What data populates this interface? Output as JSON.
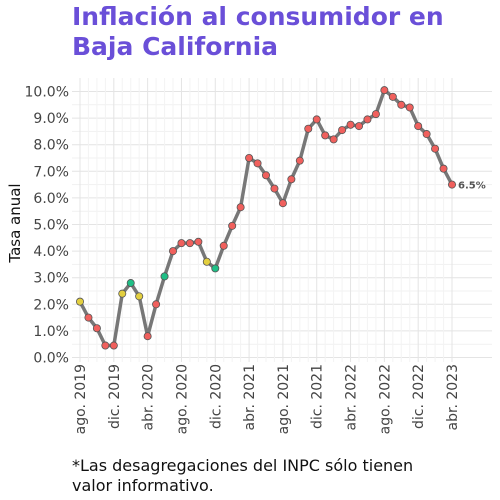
{
  "title_lines": [
    "Inflación al consumidor en",
    "Baja California"
  ],
  "footnote_lines": [
    "*Las desagregaciones del INPC sólo tienen",
    "valor informativo."
  ],
  "colors": {
    "title": "#6a4fd8",
    "line": "#777777",
    "red": "#f0605d",
    "yellow": "#e3cf3f",
    "green": "#1fbf86"
  },
  "chart_data": {
    "type": "line",
    "title": "",
    "xlabel": "",
    "ylabel": "Tasa anual",
    "ylim": [
      0,
      10
    ],
    "grid": true,
    "x_tick_labels": [
      "ago. 2019",
      "dic. 2019",
      "abr. 2020",
      "ago. 2020",
      "dic. 2020",
      "abr. 2021",
      "ago. 2021",
      "dic. 2021",
      "abr. 2022",
      "ago. 2022",
      "dic. 2022",
      "abr. 2023"
    ],
    "y_tick_labels": [
      "0.0%",
      "1.0%",
      "2.0%",
      "3.0%",
      "4.0%",
      "5.0%",
      "6.0%",
      "7.0%",
      "8.0%",
      "9.0%",
      "10.0%"
    ],
    "end_label": "6.5%",
    "x": [
      "ago. 2019",
      "sep. 2019",
      "oct. 2019",
      "nov. 2019",
      "dic. 2019",
      "ene. 2020",
      "feb. 2020",
      "mar. 2020",
      "abr. 2020",
      "may. 2020",
      "jun. 2020",
      "jul. 2020",
      "ago. 2020",
      "sep. 2020",
      "oct. 2020",
      "nov. 2020",
      "dic. 2020",
      "ene. 2021",
      "feb. 2021",
      "mar. 2021",
      "abr. 2021",
      "may. 2021",
      "jun. 2021",
      "jul. 2021",
      "ago. 2021",
      "sep. 2021",
      "oct. 2021",
      "nov. 2021",
      "dic. 2021",
      "ene. 2022",
      "feb. 2022",
      "mar. 2022",
      "abr. 2022",
      "may. 2022",
      "jun. 2022",
      "jul. 2022",
      "ago. 2022",
      "sep. 2022",
      "oct. 2022",
      "nov. 2022",
      "dic. 2022",
      "ene. 2023",
      "feb. 2023",
      "mar. 2023",
      "abr. 2023"
    ],
    "values": [
      2.1,
      1.5,
      1.1,
      0.45,
      0.45,
      2.4,
      2.8,
      2.3,
      0.8,
      2.0,
      3.05,
      4.0,
      4.3,
      4.3,
      4.35,
      3.6,
      3.35,
      4.2,
      4.95,
      5.65,
      7.5,
      7.3,
      6.85,
      6.35,
      5.8,
      6.7,
      7.4,
      8.6,
      8.95,
      8.35,
      8.2,
      8.55,
      8.75,
      8.7,
      8.95,
      9.15,
      10.05,
      9.8,
      9.5,
      9.4,
      8.7,
      8.4,
      7.85,
      7.1,
      6.5
    ],
    "point_colors": [
      "yellow",
      "red",
      "red",
      "red",
      "red",
      "yellow",
      "green",
      "yellow",
      "red",
      "red",
      "green",
      "red",
      "red",
      "red",
      "red",
      "yellow",
      "green",
      "red",
      "red",
      "red",
      "red",
      "red",
      "red",
      "red",
      "red",
      "red",
      "red",
      "red",
      "red",
      "red",
      "red",
      "red",
      "red",
      "red",
      "red",
      "red",
      "red",
      "red",
      "red",
      "red",
      "red",
      "red",
      "red",
      "red",
      "red"
    ]
  }
}
